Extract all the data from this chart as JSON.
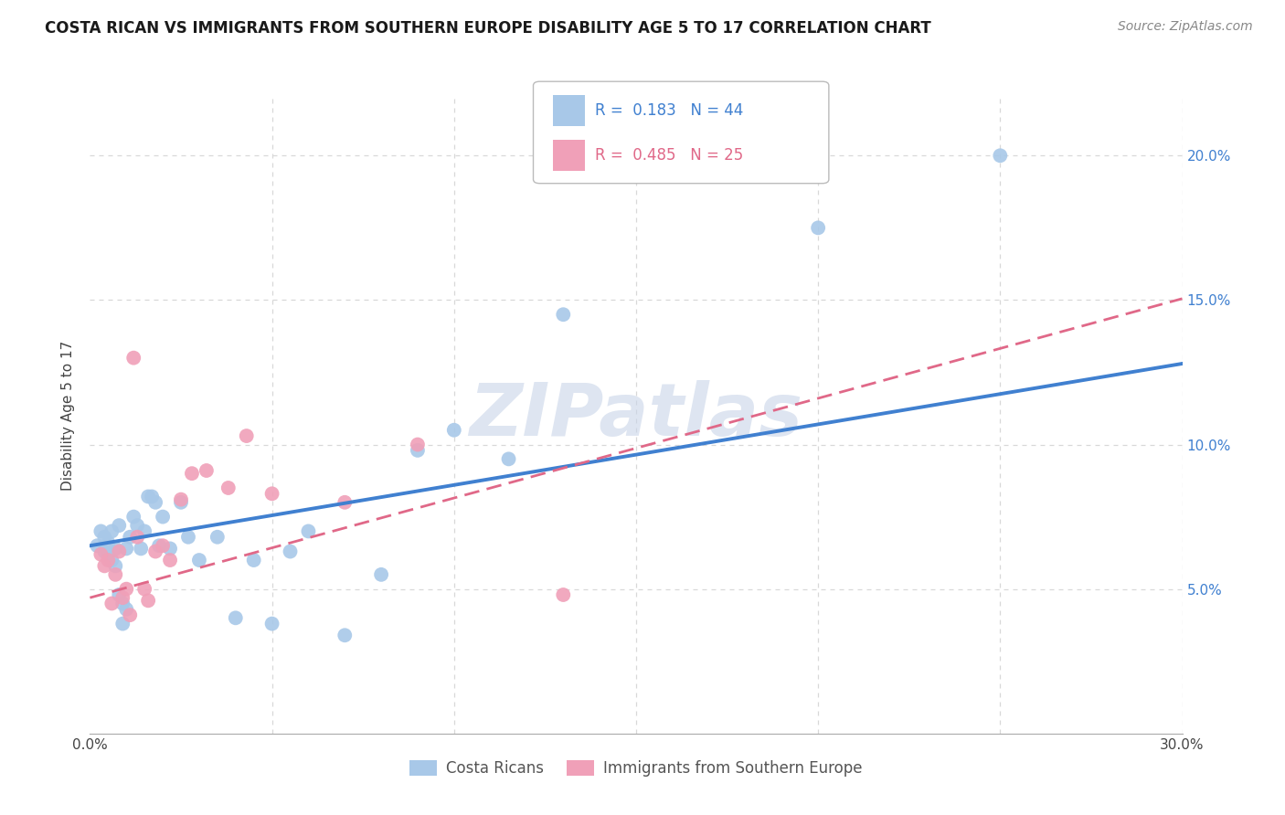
{
  "title": "COSTA RICAN VS IMMIGRANTS FROM SOUTHERN EUROPE DISABILITY AGE 5 TO 17 CORRELATION CHART",
  "source": "Source: ZipAtlas.com",
  "ylabel": "Disability Age 5 to 17",
  "xlim": [
    0.0,
    0.3
  ],
  "ylim": [
    0.0,
    0.22
  ],
  "xticks": [
    0.0,
    0.05,
    0.1,
    0.15,
    0.2,
    0.25,
    0.3
  ],
  "xticklabels": [
    "0.0%",
    "",
    "",
    "",
    "",
    "",
    "30.0%"
  ],
  "yticks": [
    0.0,
    0.05,
    0.1,
    0.15,
    0.2
  ],
  "yticklabels": [
    "",
    "5.0%",
    "10.0%",
    "15.0%",
    "20.0%"
  ],
  "blue_R": "0.183",
  "blue_N": "44",
  "pink_R": "0.485",
  "pink_N": "25",
  "blue_color": "#a8c8e8",
  "pink_color": "#f0a0b8",
  "blue_line_color": "#4080d0",
  "pink_line_color": "#e06888",
  "blue_intercept": 0.065,
  "blue_slope": 0.21,
  "pink_intercept": 0.047,
  "pink_slope": 0.345,
  "blue_points_x": [
    0.002,
    0.003,
    0.004,
    0.004,
    0.005,
    0.005,
    0.006,
    0.006,
    0.007,
    0.007,
    0.008,
    0.008,
    0.009,
    0.009,
    0.01,
    0.01,
    0.011,
    0.012,
    0.013,
    0.014,
    0.015,
    0.016,
    0.017,
    0.018,
    0.019,
    0.02,
    0.022,
    0.025,
    0.027,
    0.03,
    0.035,
    0.04,
    0.045,
    0.05,
    0.055,
    0.06,
    0.07,
    0.08,
    0.09,
    0.1,
    0.115,
    0.13,
    0.2,
    0.25
  ],
  "blue_points_y": [
    0.065,
    0.07,
    0.068,
    0.063,
    0.066,
    0.062,
    0.07,
    0.06,
    0.064,
    0.058,
    0.072,
    0.048,
    0.045,
    0.038,
    0.064,
    0.043,
    0.068,
    0.075,
    0.072,
    0.064,
    0.07,
    0.082,
    0.082,
    0.08,
    0.065,
    0.075,
    0.064,
    0.08,
    0.068,
    0.06,
    0.068,
    0.04,
    0.06,
    0.038,
    0.063,
    0.07,
    0.034,
    0.055,
    0.098,
    0.105,
    0.095,
    0.145,
    0.175,
    0.2
  ],
  "pink_points_x": [
    0.003,
    0.004,
    0.005,
    0.006,
    0.007,
    0.008,
    0.009,
    0.01,
    0.011,
    0.012,
    0.013,
    0.015,
    0.016,
    0.018,
    0.02,
    0.022,
    0.025,
    0.028,
    0.032,
    0.038,
    0.043,
    0.05,
    0.07,
    0.09,
    0.13
  ],
  "pink_points_y": [
    0.062,
    0.058,
    0.06,
    0.045,
    0.055,
    0.063,
    0.047,
    0.05,
    0.041,
    0.13,
    0.068,
    0.05,
    0.046,
    0.063,
    0.065,
    0.06,
    0.081,
    0.09,
    0.091,
    0.085,
    0.103,
    0.083,
    0.08,
    0.1,
    0.048
  ],
  "grid_color": "#d8d8d8",
  "watermark_color": "#c8d4e8",
  "watermark_alpha": 0.6,
  "background_color": "#ffffff",
  "title_fontsize": 12,
  "source_fontsize": 10,
  "tick_fontsize": 11,
  "ylabel_fontsize": 11
}
